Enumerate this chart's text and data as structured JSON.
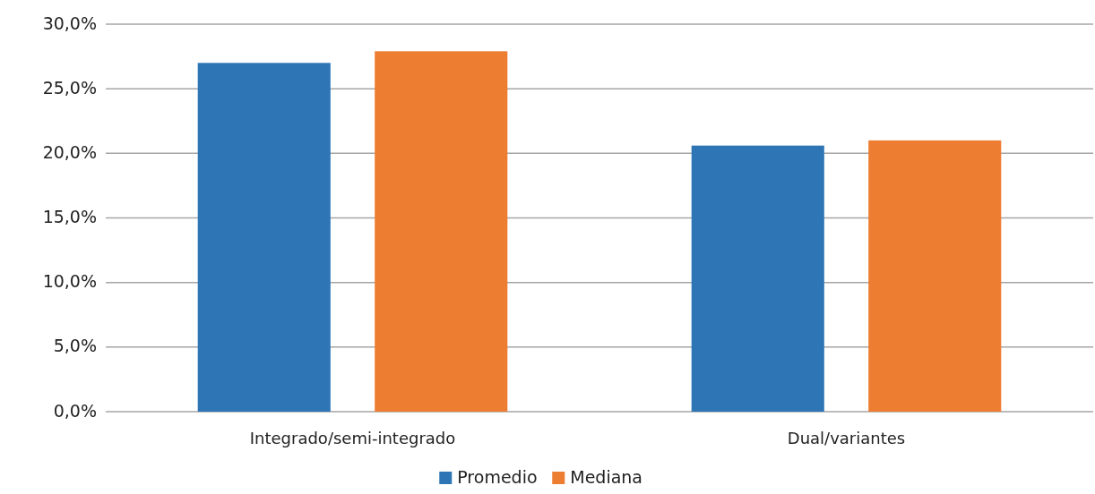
{
  "chart_data": {
    "type": "bar",
    "categories": [
      "Integrado/semi-integrado",
      "Dual/variantes"
    ],
    "series": [
      {
        "name": "Promedio",
        "color": "#2e75b6",
        "values": [
          27.0,
          20.6
        ]
      },
      {
        "name": "Mediana",
        "color": "#ed7d31",
        "values": [
          27.9,
          21.0
        ]
      }
    ],
    "ylim": [
      0,
      30
    ],
    "yticks": [
      {
        "value": 0,
        "label": "0,0%"
      },
      {
        "value": 5,
        "label": "5,0%"
      },
      {
        "value": 10,
        "label": "10,0%"
      },
      {
        "value": 15,
        "label": "15,0%"
      },
      {
        "value": 20,
        "label": "20,0%"
      },
      {
        "value": 25,
        "label": "25,0%"
      },
      {
        "value": 30,
        "label": "30,0%"
      }
    ],
    "grid": "y",
    "legend": "bottom"
  }
}
